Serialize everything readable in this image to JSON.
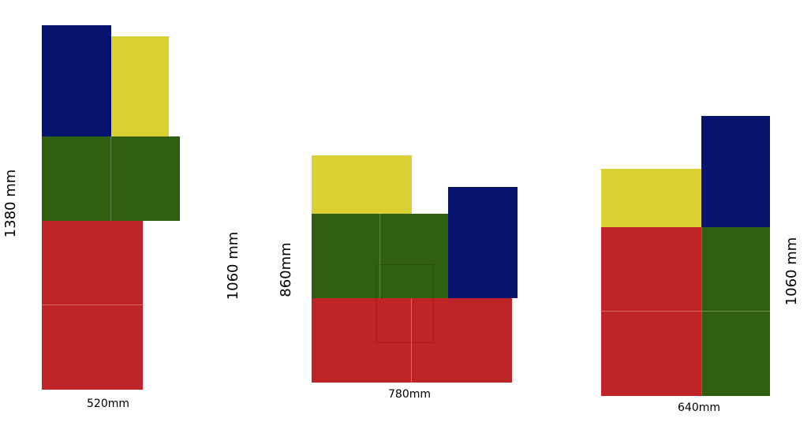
{
  "colors": {
    "blue": "#061470",
    "yellow": "#dbd033",
    "green": "#2f5f0f",
    "red": "#bf2427"
  },
  "arrangement_1": {
    "width_label": "520mm",
    "height_label": "1380 mm"
  },
  "arrangement_2": {
    "width_label": "780mm",
    "height_label": "860mm",
    "outer_height_label": "1060 mm"
  },
  "arrangement_3": {
    "width_label": "640mm",
    "height_label": "1060 mm"
  }
}
